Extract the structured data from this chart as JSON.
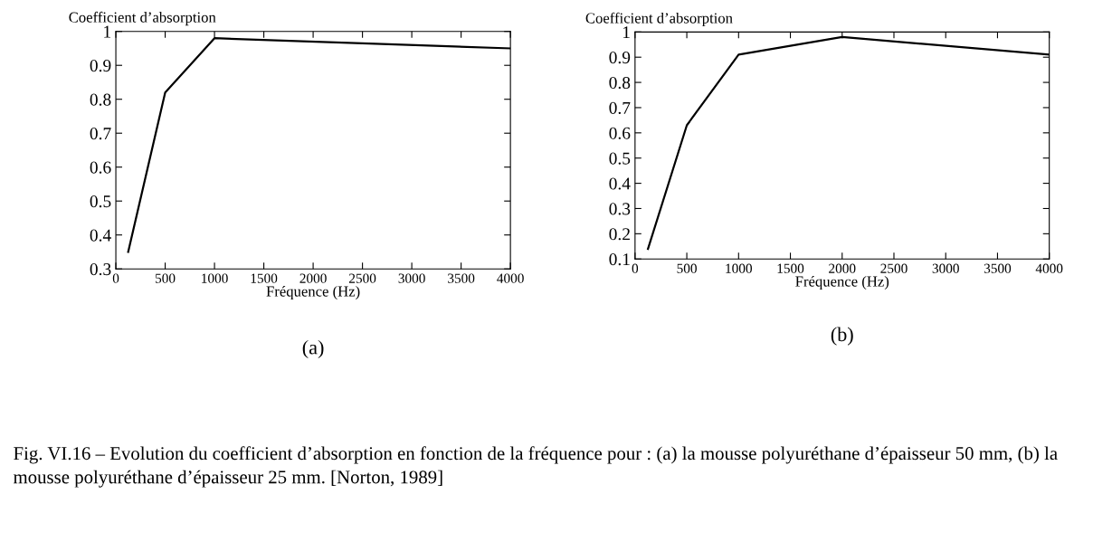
{
  "chart_data": [
    {
      "type": "line",
      "title": "(a)",
      "xlabel": "Fréquence (Hz)",
      "ylabel": "Coefficient d’absorption",
      "x": [
        125,
        500,
        1000,
        4000
      ],
      "series": [
        {
          "color": "#000000",
          "values": [
            0.35,
            0.82,
            0.98,
            0.95
          ]
        }
      ],
      "xlim": [
        0,
        4000
      ],
      "xticks": [
        0,
        500,
        1000,
        1500,
        2000,
        2500,
        3000,
        3500,
        4000
      ],
      "ylim": [
        0.3,
        1
      ],
      "yticks": [
        0.3,
        0.4,
        0.5,
        0.6,
        0.7,
        0.8,
        0.9,
        1
      ]
    },
    {
      "type": "line",
      "title": "(b)",
      "xlabel": "Fréquence (Hz)",
      "ylabel": "Coefficient d’absorption",
      "x": [
        125,
        500,
        1000,
        2000,
        4000
      ],
      "series": [
        {
          "color": "#000000",
          "values": [
            0.14,
            0.63,
            0.91,
            0.98,
            0.91
          ]
        }
      ],
      "xlim": [
        0,
        4000
      ],
      "xticks": [
        0,
        500,
        1000,
        1500,
        2000,
        2500,
        3000,
        3500,
        4000
      ],
      "ylim": [
        0.1,
        1
      ],
      "yticks": [
        0.1,
        0.2,
        0.3,
        0.4,
        0.5,
        0.6,
        0.7,
        0.8,
        0.9,
        1
      ],
      "annotations": [
        "Fig. VI.16 – Evolution du coefficient d’absorption en fonction de la fréquence pour : (a) la mousse polyuréthane d’épaisseur 50 mm, (b) la mousse polyuréthane d’épaisseur 25 mm. [Norton, 1989]"
      ]
    }
  ]
}
